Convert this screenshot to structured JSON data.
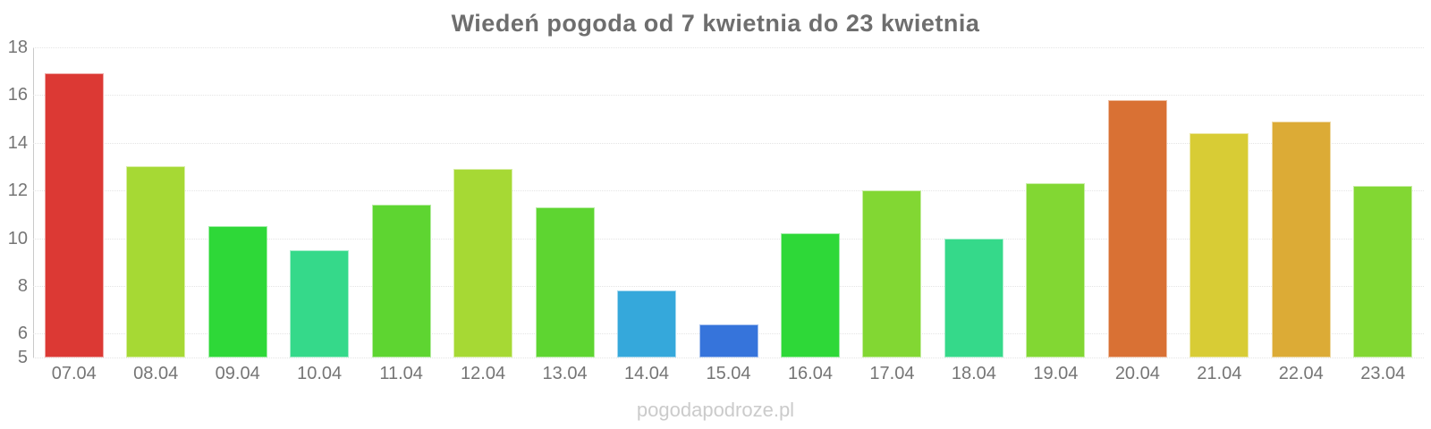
{
  "title": "Wiedeń pogoda od 7 kwietnia do 23 kwietnia",
  "watermark": "pogodapodroze.pl",
  "axis": {
    "y_ticks": [
      18,
      16,
      14,
      12,
      10,
      8,
      6,
      5
    ],
    "y_min": 5,
    "y_max": 18
  },
  "chart_data": {
    "type": "bar",
    "title": "Wiedeń pogoda od 7 kwietnia do 23 kwietnia",
    "categories": [
      "07.04",
      "08.04",
      "09.04",
      "10.04",
      "11.04",
      "12.04",
      "13.04",
      "14.04",
      "15.04",
      "16.04",
      "17.04",
      "18.04",
      "19.04",
      "20.04",
      "21.04",
      "22.04",
      "23.04"
    ],
    "values": [
      16.9,
      13.0,
      10.5,
      9.5,
      11.4,
      12.9,
      11.3,
      7.8,
      6.4,
      10.2,
      12.0,
      10.0,
      12.3,
      15.8,
      14.4,
      14.9,
      12.2
    ],
    "bar_colors": [
      "#dc3934",
      "#a6d934",
      "#2ed838",
      "#35d98a",
      "#5ed531",
      "#a6d934",
      "#5ed531",
      "#35a8db",
      "#3674db",
      "#2ed838",
      "#82d733",
      "#35d98a",
      "#82d733",
      "#d97134",
      "#d8cc35",
      "#dcab36",
      "#82d733"
    ],
    "xlabel": "",
    "ylabel": "",
    "ylim": [
      5,
      18
    ],
    "grid": true,
    "legend": false
  },
  "colors": {
    "title_text": "#6e6e6e",
    "axis_text": "#757575",
    "gridline": "#e4e4e4",
    "axis_line": "#c9c9c9",
    "watermark_text": "#cbcbcb",
    "background": "#ffffff"
  }
}
